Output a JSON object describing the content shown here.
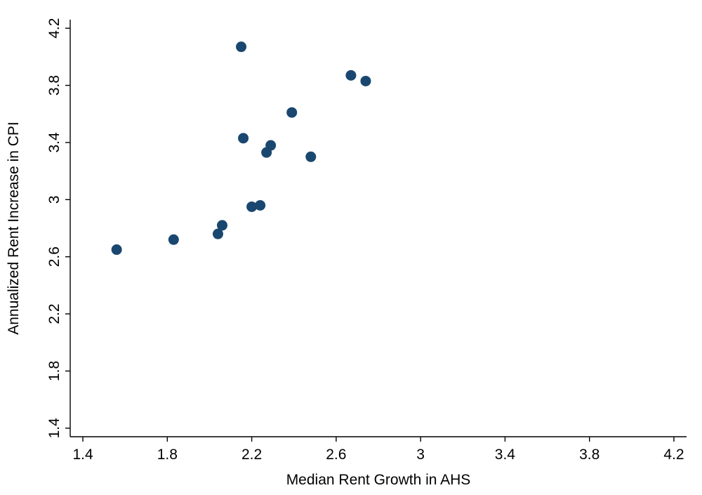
{
  "chart_data": {
    "type": "scatter",
    "title": "",
    "xlabel": "Median Rent Growth in AHS",
    "ylabel": "Annualized Rent Increase in CPI",
    "xlim": [
      1.34,
      4.26
    ],
    "ylim": [
      1.34,
      4.26
    ],
    "xticks": [
      1.4,
      1.8,
      2.2,
      2.6,
      3,
      3.4,
      3.8,
      4.2
    ],
    "yticks": [
      1.4,
      1.8,
      2.2,
      2.6,
      3,
      3.4,
      3.8,
      4.2
    ],
    "grid": false,
    "legend": false,
    "marker_color": "#1a476f",
    "marker_radius": 7.5,
    "points": [
      {
        "x": 1.56,
        "y": 2.65
      },
      {
        "x": 1.83,
        "y": 2.72
      },
      {
        "x": 2.04,
        "y": 2.76
      },
      {
        "x": 2.06,
        "y": 2.82
      },
      {
        "x": 2.15,
        "y": 4.07
      },
      {
        "x": 2.16,
        "y": 3.43
      },
      {
        "x": 2.2,
        "y": 2.95
      },
      {
        "x": 2.24,
        "y": 2.96
      },
      {
        "x": 2.27,
        "y": 3.33
      },
      {
        "x": 2.29,
        "y": 3.38
      },
      {
        "x": 2.39,
        "y": 3.61
      },
      {
        "x": 2.48,
        "y": 3.3
      },
      {
        "x": 2.67,
        "y": 3.87
      },
      {
        "x": 2.74,
        "y": 3.83
      }
    ]
  }
}
